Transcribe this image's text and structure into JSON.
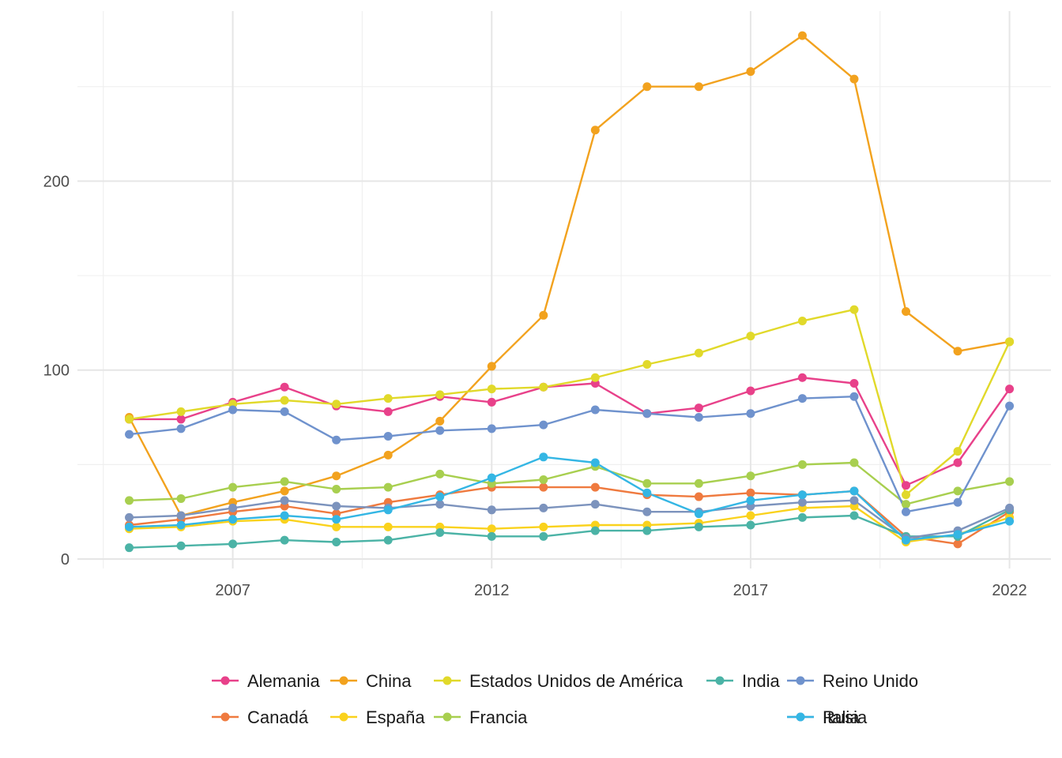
{
  "chart_data": {
    "type": "line",
    "title": "",
    "xlabel": "",
    "ylabel": "",
    "xlim": [
      2004,
      2022.8
    ],
    "ylim": [
      -5,
      290
    ],
    "x_ticks": [
      2007,
      2012,
      2017,
      2022
    ],
    "y_ticks": [
      0,
      100,
      200
    ],
    "grid": true,
    "legend_position": "bottom",
    "x": [
      2005,
      2006,
      2007,
      2008,
      2009,
      2010,
      2011,
      2012,
      2013,
      2014,
      2015,
      2016,
      2017,
      2018,
      2019,
      2020,
      2021,
      2022
    ],
    "series": [
      {
        "name": "Alemania",
        "color": "#e8418a",
        "values": [
          74,
          74,
          83,
          91,
          81,
          78,
          86,
          83,
          91,
          93,
          77,
          80,
          89,
          96,
          93,
          39,
          51,
          90
        ]
      },
      {
        "name": "Canadá",
        "color": "#ef7a3f",
        "values": [
          18,
          21,
          25,
          28,
          24,
          30,
          34,
          38,
          38,
          38,
          34,
          33,
          35,
          34,
          36,
          12,
          8,
          25
        ]
      },
      {
        "name": "China",
        "color": "#f2a21e",
        "values": [
          75,
          23,
          30,
          36,
          44,
          55,
          73,
          102,
          129,
          227,
          250,
          250,
          258,
          277,
          254,
          131,
          110,
          115
        ]
      },
      {
        "name": "España",
        "color": "#fad21c",
        "values": [
          16,
          17,
          20,
          21,
          17,
          17,
          17,
          16,
          17,
          18,
          18,
          19,
          23,
          27,
          28,
          9,
          13,
          22
        ]
      },
      {
        "name": "Estados Unidos de América",
        "color": "#e1d92a",
        "values": [
          74,
          78,
          82,
          84,
          82,
          85,
          87,
          90,
          91,
          96,
          103,
          109,
          118,
          126,
          132,
          34,
          57,
          115
        ]
      },
      {
        "name": "Francia",
        "color": "#a8cf4f",
        "values": [
          31,
          32,
          38,
          41,
          37,
          38,
          45,
          40,
          42,
          49,
          40,
          40,
          44,
          50,
          51,
          29,
          36,
          41
        ]
      },
      {
        "name": "India",
        "color": "#4bb3a6",
        "values": [
          6,
          7,
          8,
          10,
          9,
          10,
          14,
          12,
          12,
          15,
          15,
          17,
          18,
          22,
          23,
          12,
          12,
          26
        ]
      },
      {
        "name": "Italia",
        "color": "#7c93bd",
        "values": [
          22,
          23,
          27,
          31,
          28,
          27,
          29,
          26,
          27,
          29,
          25,
          25,
          28,
          30,
          31,
          11,
          15,
          27
        ]
      },
      {
        "name": "Reino Unido",
        "color": "#6f92cd",
        "values": [
          66,
          69,
          79,
          78,
          63,
          65,
          68,
          69,
          71,
          79,
          77,
          75,
          77,
          85,
          86,
          25,
          30,
          81
        ]
      },
      {
        "name": "Rusia",
        "color": "#34b6e4",
        "values": [
          17,
          18,
          21,
          23,
          21,
          26,
          33,
          43,
          54,
          51,
          35,
          24,
          31,
          34,
          36,
          10,
          13,
          20
        ]
      }
    ],
    "legend_layout": [
      [
        "Alemania",
        "China",
        "Estados Unidos de América",
        "India",
        "Reino Unido"
      ],
      [
        "Canadá",
        "España",
        "Francia",
        "",
        "Italia",
        "Rusia"
      ]
    ]
  }
}
